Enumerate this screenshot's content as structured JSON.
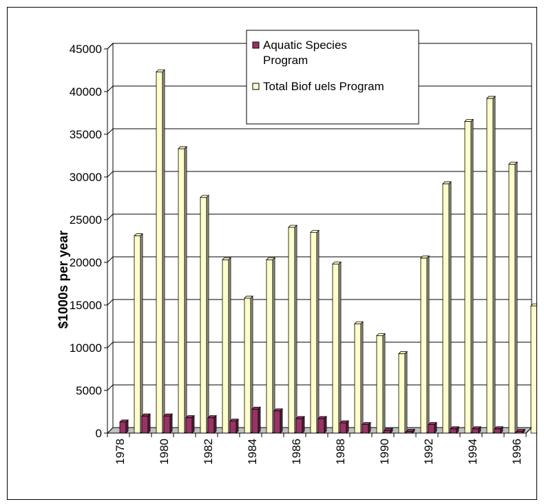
{
  "chart_data": {
    "type": "bar",
    "categories": [
      "1978",
      "1979",
      "1980",
      "1981",
      "1982",
      "1983",
      "1984",
      "1985",
      "1986",
      "1987",
      "1988",
      "1989",
      "1990",
      "1991",
      "1992",
      "1993",
      "1994",
      "1995",
      "1996"
    ],
    "x_tick_labels": [
      "1978",
      "1980",
      "1982",
      "1984",
      "1986",
      "1988",
      "1990",
      "1992",
      "1994",
      "1996"
    ],
    "y_tick_labels": [
      "0",
      "5000",
      "10000",
      "15000",
      "20000",
      "25000",
      "30000",
      "35000",
      "40000",
      "45000"
    ],
    "ylabel": "$1000s per year",
    "xlabel": "",
    "title": "",
    "ylim": [
      0,
      45000
    ],
    "grid": true,
    "legend_position": "top-right",
    "series": [
      {
        "name": "Aquatic Species Program",
        "legend_lines": [
          "Aquatic Species",
          "Program"
        ],
        "color": "#993366",
        "values": [
          1300,
          2000,
          2000,
          1800,
          1800,
          1400,
          2800,
          2600,
          1700,
          1700,
          1200,
          1000,
          300,
          200,
          1000,
          500,
          500,
          500,
          200
        ]
      },
      {
        "name": "Total Biofuels Program",
        "legend_lines": [
          "Total Biof uels Program"
        ],
        "color": "#FFFFCC",
        "values": [
          23100,
          42300,
          33300,
          27600,
          20300,
          15800,
          20300,
          24100,
          23500,
          19800,
          12800,
          11400,
          9300,
          20500,
          29200,
          36500,
          39200,
          31500,
          14900
        ]
      }
    ],
    "colors": {
      "grid": "#000000",
      "back_wall": "#FFFFFF",
      "floor": "#C0C0C0"
    }
  }
}
